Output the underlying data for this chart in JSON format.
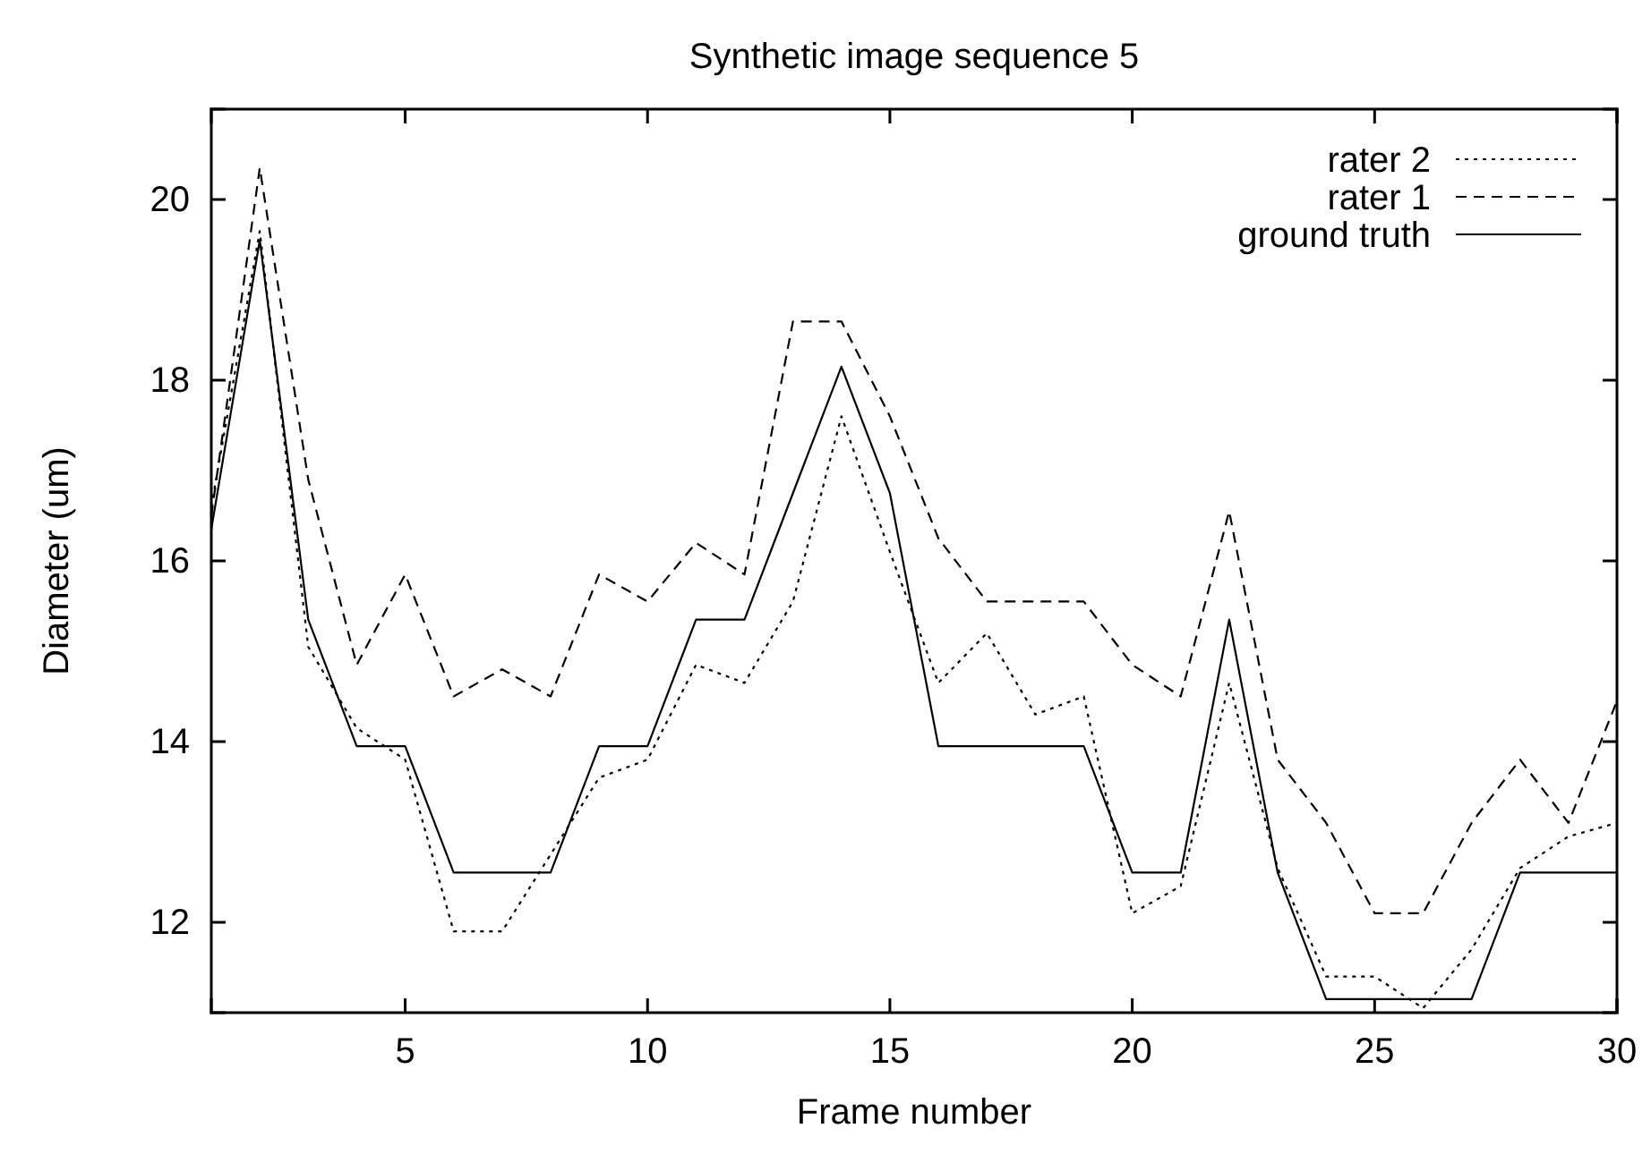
{
  "chart_data": {
    "type": "line",
    "title": "Synthetic image sequence 5",
    "xlabel": "Frame number",
    "ylabel": "Diameter (um)",
    "x": [
      1,
      2,
      3,
      4,
      5,
      6,
      7,
      8,
      9,
      10,
      11,
      12,
      13,
      14,
      15,
      16,
      17,
      18,
      19,
      20,
      21,
      22,
      23,
      24,
      25,
      26,
      27,
      28,
      29,
      30
    ],
    "xlim": [
      1,
      30
    ],
    "xticks": [
      5,
      10,
      15,
      20,
      25,
      30
    ],
    "ylim": [
      11,
      21
    ],
    "yticks": [
      12,
      14,
      16,
      18,
      20
    ],
    "grid": false,
    "legend": "top right",
    "marker": "none",
    "series": [
      {
        "name": "rater 2",
        "color": "#000000",
        "line_style": "dotted",
        "values": [
          16.6,
          19.65,
          15.05,
          14.15,
          13.8,
          11.9,
          11.9,
          12.75,
          13.6,
          13.8,
          14.85,
          14.65,
          15.55,
          17.6,
          16.1,
          14.65,
          15.2,
          14.3,
          14.5,
          12.1,
          12.4,
          14.65,
          12.6,
          11.4,
          11.4,
          11.05,
          11.7,
          12.6,
          12.95,
          13.1
        ]
      },
      {
        "name": "rater 1",
        "color": "#000000",
        "line_style": "dashed",
        "values": [
          16.5,
          20.35,
          16.9,
          14.85,
          15.85,
          14.5,
          14.8,
          14.5,
          15.85,
          15.55,
          16.2,
          15.85,
          18.65,
          18.65,
          17.6,
          16.25,
          15.55,
          15.55,
          15.55,
          14.85,
          14.5,
          16.55,
          13.8,
          13.1,
          12.1,
          12.1,
          13.1,
          13.8,
          13.1,
          14.45
        ]
      },
      {
        "name": "ground truth",
        "color": "#000000",
        "line_style": "solid",
        "values": [
          16.35,
          19.55,
          15.35,
          13.95,
          13.95,
          12.55,
          12.55,
          12.55,
          13.95,
          13.95,
          15.35,
          15.35,
          16.75,
          18.15,
          16.75,
          13.95,
          13.95,
          13.95,
          13.95,
          12.55,
          12.55,
          15.35,
          12.55,
          11.15,
          11.15,
          11.15,
          11.15,
          12.55,
          12.55,
          12.55
        ]
      }
    ]
  }
}
